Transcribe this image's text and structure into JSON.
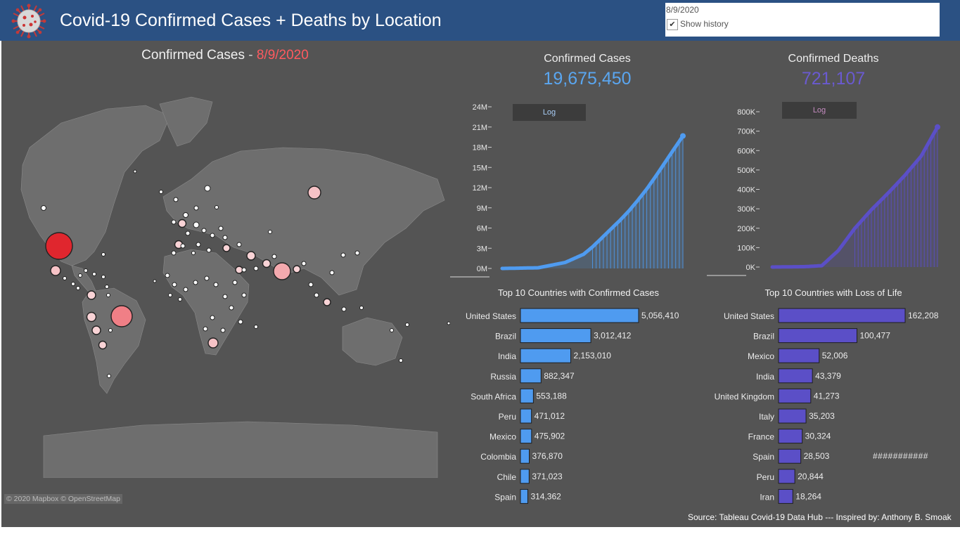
{
  "header": {
    "title": "Covid-19 Confirmed Cases + Deaths by Location",
    "date_value": "8/9/2020",
    "show_history_checked": "✔",
    "show_history_label": "Show history"
  },
  "map": {
    "title_prefix": "Confirmed Cases",
    "title_sep": " - ",
    "title_date": "8/9/2020",
    "attribution": "© 2020 Mapbox © OpenStreetMap"
  },
  "kpis": {
    "cases_label": "Confirmed Cases",
    "cases_value": "19,675,450",
    "deaths_label": "Confirmed Deaths",
    "deaths_value": "721,107",
    "cases_color": "#5aa6f0",
    "deaths_color": "#6a5ad0"
  },
  "log_button": "Log",
  "colors": {
    "cases": "#4f9bf0",
    "deaths": "#5b4fc7",
    "map_large": "#e0262e",
    "map_medium": "#f07f86",
    "map_small": "#f9c9cc"
  },
  "chart_data": [
    {
      "id": "cases-line",
      "type": "area",
      "ylim": [
        0,
        24000000
      ],
      "yticks": [
        0,
        3000000,
        6000000,
        9000000,
        12000000,
        15000000,
        18000000,
        21000000,
        24000000
      ],
      "ytick_labels": [
        "0M",
        "3M",
        "6M",
        "9M",
        "12M",
        "15M",
        "18M",
        "21M",
        "24M"
      ],
      "x": [
        0,
        20,
        35,
        45,
        50,
        55,
        60,
        65,
        70,
        75,
        80,
        85,
        90,
        95,
        100
      ],
      "values": [
        0,
        100000,
        900000,
        2100000,
        3200000,
        4500000,
        5800000,
        7100000,
        8500000,
        10100000,
        11800000,
        13700000,
        15700000,
        17700000,
        19675450
      ]
    },
    {
      "id": "deaths-line",
      "type": "area",
      "ylim": [
        0,
        800000
      ],
      "yticks": [
        0,
        100000,
        200000,
        300000,
        400000,
        500000,
        600000,
        700000,
        800000
      ],
      "ytick_labels": [
        "0K",
        "100K",
        "200K",
        "300K",
        "400K",
        "500K",
        "600K",
        "700K",
        "800K"
      ],
      "x": [
        0,
        20,
        30,
        40,
        50,
        60,
        70,
        80,
        90,
        100
      ],
      "values": [
        0,
        2000,
        7000,
        85000,
        200000,
        295000,
        380000,
        470000,
        570000,
        721107
      ]
    },
    {
      "id": "cases-bar",
      "type": "bar",
      "title": "Top 10 Countries with Confirmed Cases",
      "categories": [
        "United States",
        "Brazil",
        "India",
        "Russia",
        "South Africa",
        "Peru",
        "Mexico",
        "Colombia",
        "Chile",
        "Spain"
      ],
      "values": [
        5056410,
        3012412,
        2153010,
        882347,
        553188,
        471012,
        475902,
        376870,
        371023,
        314362
      ],
      "labels": [
        "5,056,410",
        "3,012,412",
        "2,153,010",
        "882,347",
        "553,188",
        "471,012",
        "475,902",
        "376,870",
        "371,023",
        "314,362"
      ]
    },
    {
      "id": "deaths-bar",
      "type": "bar",
      "title": "Top 10 Countries with Loss of Life",
      "categories": [
        "United States",
        "Brazil",
        "Mexico",
        "India",
        "United Kingdom",
        "Italy",
        "France",
        "Spain",
        "Peru",
        "Iran"
      ],
      "values": [
        162208,
        100477,
        52006,
        43379,
        41273,
        35203,
        30324,
        28503,
        20844,
        18264
      ],
      "labels": [
        "162,208",
        "100,477",
        "52,006",
        "43,379",
        "41,273",
        "35,203",
        "30,324",
        "28,503",
        "20,844",
        "18,264"
      ]
    }
  ],
  "extra_text": "###########",
  "source": "Source: Tableau Covid-19 Data Hub --- Inspired by: Anthony B. Smoak"
}
